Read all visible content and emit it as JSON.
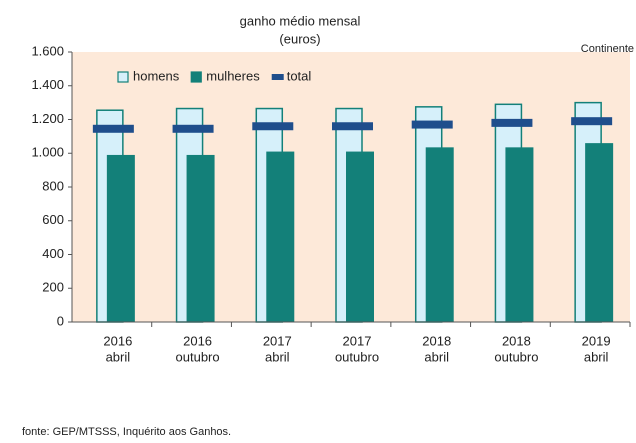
{
  "chart_data": {
    "type": "bar",
    "title": "ganho médio mensal",
    "subtitle": "(euros)",
    "annotation": "Continente",
    "source": "fonte: GEP/MTSSS, Inquérito aos Ganhos.",
    "categories": [
      [
        "2016",
        "abril"
      ],
      [
        "2016",
        "outubro"
      ],
      [
        "2017",
        "abril"
      ],
      [
        "2017",
        "outubro"
      ],
      [
        "2018",
        "abril"
      ],
      [
        "2018",
        "outubro"
      ],
      [
        "2019",
        "abril"
      ]
    ],
    "series": [
      {
        "name": "homens",
        "color": "#d6f0fa",
        "edge": "#138079",
        "values": [
          1255,
          1265,
          1265,
          1265,
          1275,
          1290,
          1300
        ]
      },
      {
        "name": "mulheres",
        "color": "#138079",
        "values": [
          990,
          990,
          1010,
          1010,
          1035,
          1035,
          1060
        ]
      },
      {
        "name": "total",
        "color": "#1f4e8c",
        "values": [
          1145,
          1145,
          1160,
          1160,
          1170,
          1180,
          1190
        ]
      }
    ],
    "ylim": [
      0,
      1600
    ],
    "yticks": [
      0,
      200,
      400,
      600,
      800,
      {
        "value": 1000,
        "label": "1.000"
      },
      {
        "value": 1200,
        "label": "1.200"
      },
      {
        "value": 1400,
        "label": "1.400"
      },
      {
        "value": 1600,
        "label": "1.600"
      }
    ],
    "legend": "top-left",
    "background": "#fde9d9"
  }
}
